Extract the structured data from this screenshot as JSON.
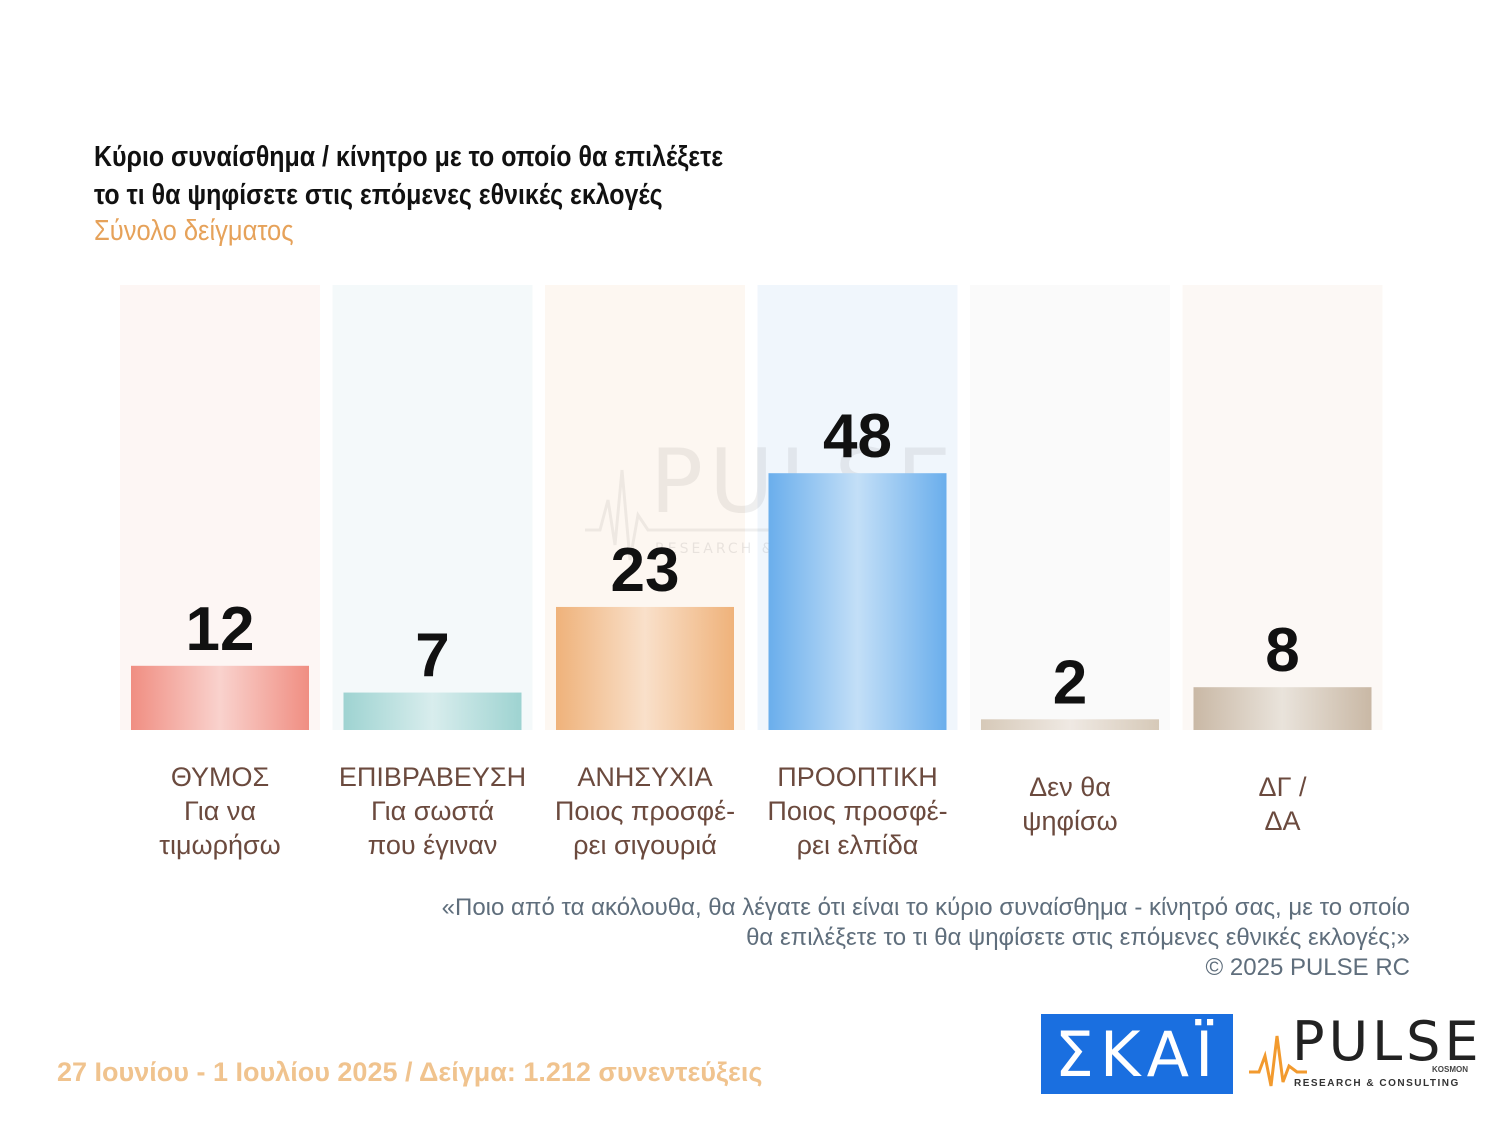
{
  "title": {
    "line1": "Κύριο συναίσθημα / κίνητρο με το οποίο θα επιλέξετε",
    "line2": "το τι θα ψηφίσετε στις επόμενες εθνικές εκλογές"
  },
  "subtitle": "Σύνολο δείγματος",
  "watermark": {
    "brand": "PULSE",
    "tagline": "RESEARCH & CONSULTING"
  },
  "chart_data": {
    "type": "bar",
    "title": "Κύριο συναίσθημα / κίνητρο με το οποίο θα επιλέξετε το τι θα ψηφίσετε στις επόμενες εθνικές εκλογές",
    "subtitle": "Σύνολο δείγματος",
    "ylim": [
      0,
      60
    ],
    "grid": false,
    "legend": "none",
    "categories": [
      [
        "ΘΥΜΟΣ",
        "Για να",
        "τιμωρήσω"
      ],
      [
        "ΕΠΙΒΡΑΒΕΥΣΗ",
        "Για σωστά",
        "που έγιναν"
      ],
      [
        "ΑΝΗΣΥΧΙΑ",
        "Ποιος προσφέ-",
        "ρει σιγουριά"
      ],
      [
        "ΠΡΟΟΠΤΙΚΗ",
        "Ποιος προσφέ-",
        "ρει ελπίδα"
      ],
      [
        "Δεν θα",
        "ψηφίσω"
      ],
      [
        "ΔΓ /",
        "ΔΑ"
      ]
    ],
    "values": [
      12,
      7,
      23,
      48,
      2,
      8
    ],
    "value_labels": [
      "12",
      "7",
      "23",
      "48",
      "2",
      "8"
    ],
    "colors": [
      "#f08e82",
      "#9ed3d1",
      "#efb27a",
      "#6aaeec",
      "#d6c9b8",
      "#c9b8a5"
    ],
    "column_tints": [
      "#fdf6f4",
      "#f4f9fa",
      "#fdf7f1",
      "#f0f6fc",
      "#fafafa",
      "#fcf8f5"
    ]
  },
  "question": {
    "line1": "«Ποιο από τα ακόλουθα, θα λέγατε ότι είναι το κύριο συναίσθημα - κίνητρό σας, με το οποίο",
    "line2": "θα επιλέξετε το τι θα ψηφίσετε στις επόμενες εθνικές εκλογές;»",
    "line3": "©  2025  PULSE RC"
  },
  "footer": "27 Ιουνίου - 1 Ιουλίου 2025  /  Δείγμα:  1.212 συνεντεύξεις",
  "logos": {
    "skai": "ΣΚΑΪ",
    "pulse": "PULSE",
    "pulse_tagline": "RESEARCH & CONSULTING",
    "pulse_kosmon": "KOSMON"
  }
}
